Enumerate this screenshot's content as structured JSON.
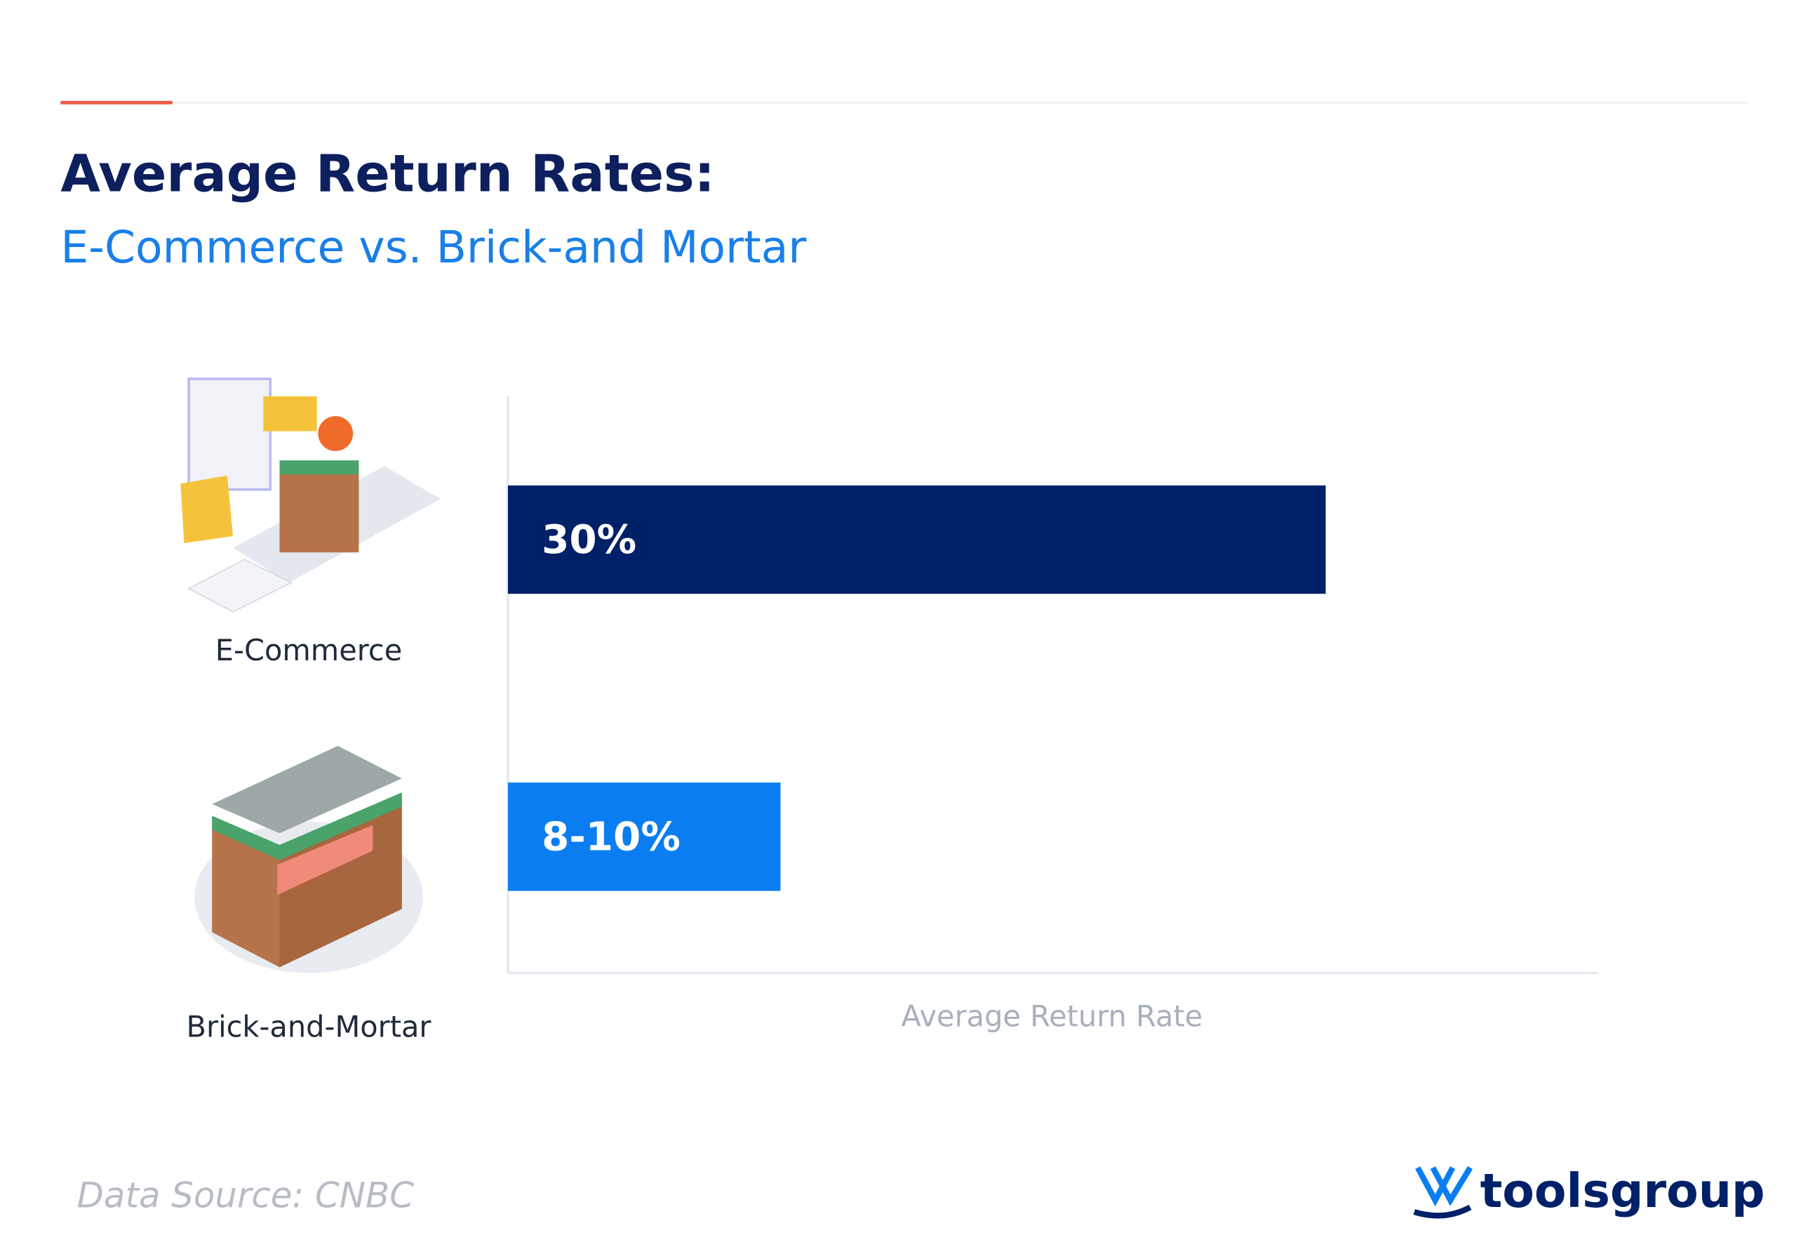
{
  "chart_data": {
    "type": "hbar",
    "title": "Average Return Rates:",
    "subtitle": "E-Commerce vs. Brick-and Mortar",
    "categories": [
      "E-Commerce",
      "Brick-and-Mortar"
    ],
    "values": [
      30,
      10
    ],
    "value_labels": [
      "30%",
      "8-10%"
    ],
    "colors": [
      "#002068",
      "#0a7ef0"
    ],
    "xlim": [
      0,
      40
    ],
    "x_label": "Average Return Rate"
  },
  "source": "Data Source: CNBC",
  "logo": "toolsgroup"
}
